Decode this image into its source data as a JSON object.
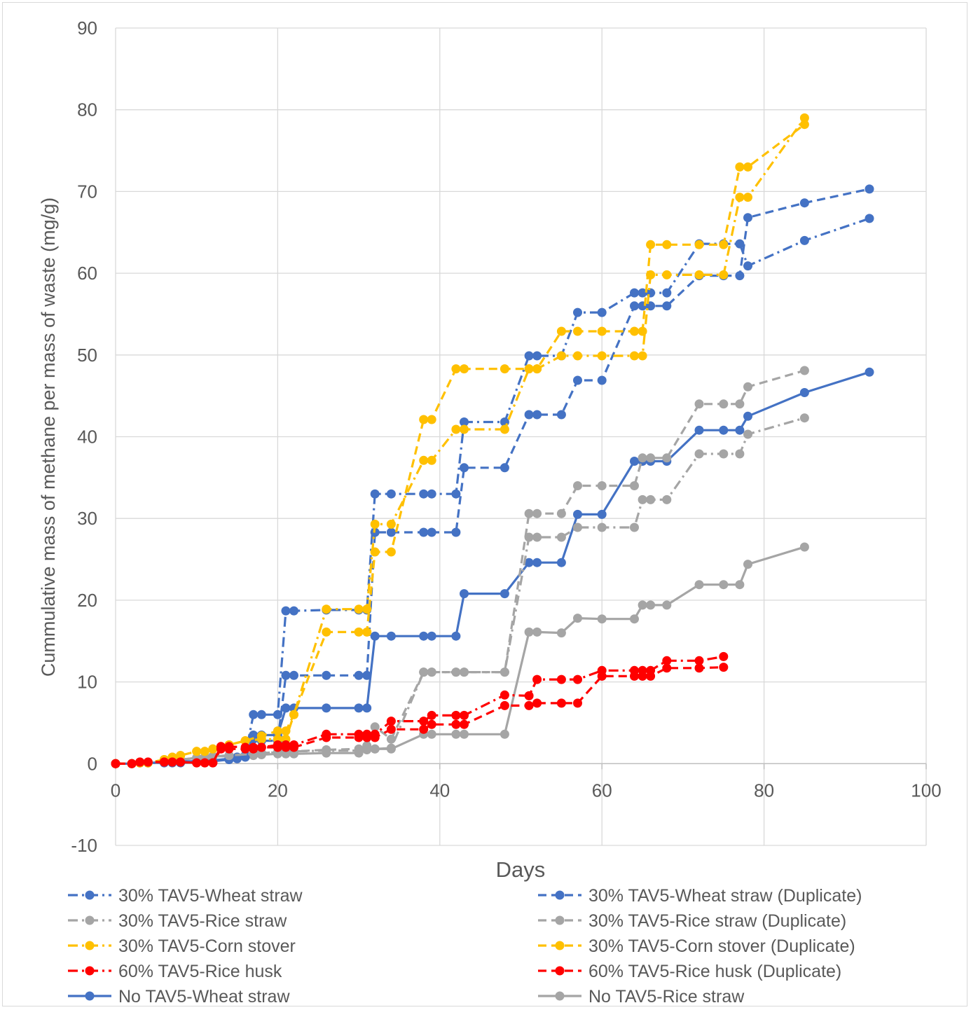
{
  "chart_data": {
    "type": "line",
    "xlabel": "Days",
    "ylabel": "Cummulative mass of methane per mass of waste (mg/g)",
    "xlim": [
      0,
      100
    ],
    "ylim": [
      -10,
      90
    ],
    "xticks": [
      "0",
      "20",
      "40",
      "60",
      "80",
      "100"
    ],
    "yticks": [
      "-10",
      "0",
      "10",
      "20",
      "30",
      "40",
      "50",
      "60",
      "70",
      "80",
      "90"
    ],
    "grid": true,
    "legend_position": "bottom",
    "series": [
      {
        "name": "30% TAV5-Wheat straw",
        "color": "#4472c4",
        "dash": "dashdot",
        "x": [
          0,
          2,
          3,
          4,
          6,
          7,
          8,
          10,
          11,
          12,
          14,
          15,
          16,
          17,
          18,
          20,
          21,
          22,
          26,
          30,
          31,
          32,
          34,
          38,
          39,
          42,
          43,
          48,
          51,
          52,
          55,
          57,
          60,
          64,
          65,
          66,
          68,
          72,
          75,
          77,
          78,
          85,
          93
        ],
        "y": [
          0,
          0,
          0.1,
          0.1,
          0.2,
          0.2,
          0.3,
          0.3,
          0.3,
          0.4,
          0.6,
          0.8,
          1.0,
          6.0,
          6.0,
          6.0,
          18.7,
          18.7,
          18.8,
          18.8,
          18.8,
          33.0,
          33.0,
          33.0,
          33.0,
          33.0,
          41.8,
          41.8,
          49.9,
          49.9,
          49.9,
          55.2,
          55.2,
          57.6,
          57.6,
          57.6,
          57.6,
          63.6,
          63.6,
          63.6,
          60.9,
          64.0,
          66.7
        ]
      },
      {
        "name": "30% TAV5-Wheat straw (Duplicate)",
        "color": "#4472c4",
        "dash": "dash",
        "x": [
          0,
          2,
          3,
          4,
          6,
          7,
          8,
          10,
          11,
          12,
          14,
          15,
          16,
          17,
          18,
          20,
          21,
          22,
          26,
          30,
          31,
          32,
          34,
          38,
          39,
          42,
          43,
          48,
          51,
          52,
          55,
          57,
          60,
          64,
          65,
          66,
          68,
          72,
          75,
          77,
          78,
          85,
          93
        ],
        "y": [
          0,
          0,
          0.1,
          0.1,
          0.2,
          0.2,
          0.3,
          0.3,
          0.3,
          0.4,
          0.6,
          0.8,
          1.0,
          3.0,
          2.8,
          2.8,
          10.8,
          10.8,
          10.8,
          10.8,
          10.8,
          28.3,
          28.3,
          28.3,
          28.3,
          28.3,
          36.2,
          36.2,
          42.7,
          42.7,
          42.7,
          46.9,
          46.9,
          56.0,
          56.0,
          56.0,
          56.0,
          59.7,
          59.7,
          59.7,
          66.8,
          68.6,
          70.3
        ]
      },
      {
        "name": "30% TAV5-Rice straw",
        "color": "#a5a5a5",
        "dash": "dashdot",
        "x": [
          0,
          2,
          3,
          4,
          6,
          7,
          8,
          10,
          11,
          12,
          14,
          17,
          18,
          20,
          21,
          22,
          26,
          30,
          31,
          32,
          34,
          38,
          39,
          42,
          43,
          48,
          51,
          52,
          55,
          57,
          60,
          64,
          65,
          66,
          68,
          72,
          75,
          77,
          78,
          85
        ],
        "y": [
          0,
          0,
          0.1,
          0.1,
          0.2,
          0.3,
          0.5,
          0.7,
          0.8,
          0.9,
          1.0,
          1.2,
          1.3,
          1.4,
          1.5,
          1.5,
          1.6,
          1.6,
          1.7,
          1.8,
          1.9,
          11.2,
          11.2,
          11.2,
          11.2,
          11.2,
          27.7,
          27.7,
          27.7,
          28.9,
          28.9,
          28.9,
          32.3,
          32.3,
          32.3,
          37.9,
          37.9,
          37.9,
          40.3,
          42.3
        ]
      },
      {
        "name": "30% TAV5-Rice straw (Duplicate)",
        "color": "#a5a5a5",
        "dash": "dash",
        "x": [
          0,
          2,
          3,
          4,
          6,
          7,
          8,
          10,
          11,
          12,
          14,
          17,
          18,
          20,
          21,
          22,
          26,
          30,
          31,
          32,
          34,
          38,
          39,
          42,
          43,
          48,
          51,
          52,
          55,
          57,
          60,
          64,
          65,
          66,
          68,
          72,
          75,
          77,
          78,
          85
        ],
        "y": [
          0,
          0,
          0.1,
          0.1,
          0.2,
          0.3,
          0.5,
          0.7,
          0.8,
          0.9,
          1.0,
          1.2,
          1.3,
          1.4,
          1.5,
          1.5,
          1.7,
          1.8,
          2.2,
          4.5,
          3.0,
          11.2,
          11.2,
          11.2,
          11.2,
          11.2,
          30.6,
          30.6,
          30.6,
          34.0,
          34.0,
          34.0,
          37.4,
          37.4,
          37.4,
          44.0,
          44.0,
          44.0,
          46.1,
          48.1
        ]
      },
      {
        "name": "30% TAV5-Corn stover",
        "color": "#ffc000",
        "dash": "dashdot",
        "x": [
          0,
          2,
          3,
          4,
          6,
          7,
          8,
          10,
          11,
          12,
          14,
          16,
          18,
          20,
          21,
          22,
          26,
          30,
          31,
          32,
          34,
          38,
          39,
          42,
          43,
          48,
          51,
          52,
          55,
          57,
          60,
          64,
          65,
          66,
          68,
          72,
          75,
          77,
          78,
          85
        ],
        "y": [
          0,
          0,
          0.1,
          0.1,
          0.5,
          0.8,
          1.0,
          1.5,
          1.5,
          1.8,
          2.3,
          2.8,
          3.0,
          3.0,
          3.0,
          6.0,
          18.9,
          18.9,
          18.9,
          29.3,
          29.3,
          37.1,
          37.1,
          40.9,
          40.9,
          40.9,
          48.3,
          48.3,
          49.9,
          49.9,
          49.9,
          49.9,
          49.9,
          59.8,
          59.8,
          59.8,
          59.8,
          69.3,
          69.3,
          79.0
        ]
      },
      {
        "name": "30% TAV5-Corn stover (Duplicate)",
        "color": "#ffc000",
        "dash": "dash",
        "x": [
          0,
          2,
          3,
          4,
          6,
          7,
          8,
          10,
          11,
          12,
          14,
          16,
          18,
          20,
          21,
          22,
          26,
          30,
          31,
          32,
          34,
          38,
          39,
          42,
          43,
          48,
          51,
          52,
          55,
          57,
          60,
          64,
          65,
          66,
          68,
          72,
          75,
          77,
          78,
          85
        ],
        "y": [
          0,
          0,
          0.1,
          0.1,
          0.5,
          0.8,
          1.0,
          1.5,
          1.5,
          1.8,
          2.3,
          2.8,
          3.4,
          4.0,
          4.0,
          6.0,
          16.1,
          16.1,
          16.1,
          25.9,
          25.9,
          42.1,
          42.1,
          48.3,
          48.3,
          48.3,
          48.3,
          48.3,
          52.9,
          52.9,
          52.9,
          52.9,
          52.9,
          63.5,
          63.5,
          63.5,
          63.5,
          73.0,
          73.0,
          78.2
        ]
      },
      {
        "name": "60% TAV5-Rice husk",
        "color": "#ff0000",
        "dash": "dashdot",
        "x": [
          0,
          2,
          3,
          4,
          6,
          7,
          8,
          10,
          11,
          12,
          13,
          14,
          16,
          17,
          18,
          20,
          21,
          22,
          26,
          30,
          31,
          32,
          34,
          38,
          39,
          42,
          43,
          48,
          51,
          52,
          55,
          57,
          60,
          64,
          65,
          66,
          68,
          72,
          75
        ],
        "y": [
          0,
          0,
          0.2,
          0.2,
          0.2,
          0.2,
          0.2,
          0.1,
          0.1,
          0.1,
          2.1,
          2.1,
          2.0,
          2.0,
          2.0,
          2.3,
          2.3,
          2.3,
          3.6,
          3.6,
          3.6,
          3.6,
          5.2,
          5.2,
          5.9,
          5.9,
          5.9,
          8.4,
          8.3,
          10.3,
          10.3,
          10.3,
          11.4,
          11.4,
          11.4,
          11.4,
          12.6,
          12.6,
          13.1
        ]
      },
      {
        "name": "60% TAV5-Rice husk (Duplicate)",
        "color": "#ff0000",
        "dash": "dash",
        "x": [
          0,
          2,
          3,
          4,
          6,
          7,
          8,
          10,
          11,
          12,
          13,
          14,
          16,
          17,
          18,
          20,
          21,
          22,
          26,
          30,
          31,
          32,
          34,
          38,
          39,
          42,
          43,
          48,
          51,
          52,
          55,
          57,
          60,
          64,
          65,
          66,
          68,
          72,
          75
        ],
        "y": [
          0,
          0,
          0.2,
          0.2,
          0.2,
          0.2,
          0.2,
          0.1,
          0.1,
          0.1,
          1.8,
          1.8,
          1.8,
          1.8,
          2.0,
          2.0,
          2.0,
          2.0,
          3.2,
          3.2,
          3.2,
          3.2,
          4.2,
          4.2,
          4.8,
          4.8,
          4.8,
          7.1,
          7.1,
          7.4,
          7.4,
          7.4,
          10.7,
          10.7,
          10.7,
          10.7,
          11.7,
          11.7,
          11.8
        ]
      },
      {
        "name": "No TAV5-Wheat straw",
        "color": "#4472c4",
        "dash": "solid",
        "x": [
          0,
          2,
          3,
          4,
          6,
          7,
          8,
          10,
          11,
          12,
          14,
          15,
          16,
          17,
          18,
          20,
          21,
          22,
          26,
          30,
          31,
          32,
          34,
          38,
          39,
          42,
          43,
          48,
          51,
          52,
          55,
          57,
          60,
          64,
          65,
          66,
          68,
          72,
          75,
          77,
          78,
          85,
          93
        ],
        "y": [
          0,
          0,
          0.1,
          0.1,
          0.1,
          0.1,
          0.1,
          0.2,
          0.2,
          0.3,
          0.5,
          0.6,
          0.8,
          3.5,
          3.5,
          3.5,
          6.8,
          6.8,
          6.8,
          6.8,
          6.8,
          15.6,
          15.6,
          15.6,
          15.6,
          15.6,
          20.8,
          20.8,
          24.6,
          24.6,
          24.6,
          30.5,
          30.5,
          37.0,
          37.0,
          37.0,
          37.0,
          40.8,
          40.8,
          40.8,
          42.5,
          45.4,
          47.9
        ]
      },
      {
        "name": "No TAV5-Rice straw",
        "color": "#a5a5a5",
        "dash": "solid",
        "x": [
          0,
          2,
          3,
          4,
          6,
          7,
          8,
          10,
          11,
          12,
          14,
          17,
          18,
          20,
          21,
          22,
          26,
          30,
          31,
          32,
          34,
          38,
          39,
          42,
          43,
          48,
          51,
          52,
          55,
          57,
          60,
          64,
          65,
          66,
          68,
          72,
          75,
          77,
          78,
          85
        ],
        "y": [
          0,
          0,
          0.1,
          0.1,
          0.2,
          0.3,
          0.5,
          0.7,
          0.8,
          0.9,
          0.9,
          1.0,
          1.1,
          1.2,
          1.2,
          1.2,
          1.3,
          1.3,
          1.8,
          1.8,
          1.8,
          3.6,
          3.6,
          3.6,
          3.6,
          3.6,
          16.1,
          16.1,
          16.0,
          17.8,
          17.7,
          17.7,
          19.4,
          19.4,
          19.4,
          21.9,
          21.9,
          21.9,
          24.4,
          26.5
        ]
      }
    ]
  }
}
